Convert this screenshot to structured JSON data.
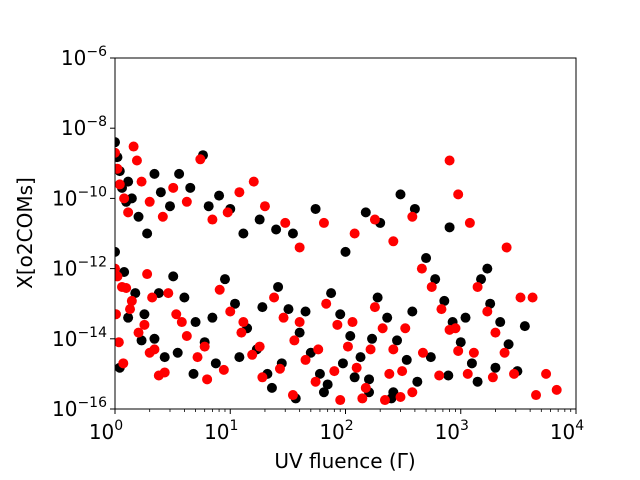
{
  "chart_data": {
    "type": "scatter",
    "title": "",
    "xlabel": "UV fluence (Γ)",
    "ylabel": "X[o2COMs]",
    "xscale": "log",
    "yscale": "log",
    "xlim": [
      1,
      10000
    ],
    "ylim": [
      1e-16,
      1e-06
    ],
    "x_ticks": [
      {
        "value": 1,
        "base": "10",
        "exp": "0"
      },
      {
        "value": 10,
        "base": "10",
        "exp": "1"
      },
      {
        "value": 100,
        "base": "10",
        "exp": "2"
      },
      {
        "value": 1000,
        "base": "10",
        "exp": "3"
      },
      {
        "value": 10000,
        "base": "10",
        "exp": "4"
      }
    ],
    "y_ticks": [
      {
        "value": 1e-16,
        "base": "10",
        "exp": "−16"
      },
      {
        "value": 1e-14,
        "base": "10",
        "exp": "−14"
      },
      {
        "value": 1e-12,
        "base": "10",
        "exp": "−12"
      },
      {
        "value": 1e-10,
        "base": "10",
        "exp": "−10"
      },
      {
        "value": 1e-08,
        "base": "10",
        "exp": "−8"
      },
      {
        "value": 1e-06,
        "base": "10",
        "exp": "−6"
      }
    ],
    "grid": false,
    "legend": "none",
    "series": [
      {
        "color": "#000000",
        "points": [
          [
            1.0,
            4e-09
          ],
          [
            1.05,
            1.5e-09
          ],
          [
            1.1,
            6e-10
          ],
          [
            1.15,
            2e-10
          ],
          [
            1.25,
            8e-11
          ],
          [
            1.3,
            3e-10
          ],
          [
            1.4,
            1e-10
          ],
          [
            1.6,
            3e-11
          ],
          [
            1.9,
            1e-11
          ],
          [
            2.2,
            5e-10
          ],
          [
            2.5,
            1.5e-10
          ],
          [
            3.0,
            6e-11
          ],
          [
            3.6,
            5e-10
          ],
          [
            4.5,
            2e-10
          ],
          [
            5.8,
            1.7e-09
          ],
          [
            6.5,
            6e-11
          ],
          [
            8,
            1.2e-10
          ],
          [
            10,
            5e-11
          ],
          [
            13,
            1e-11
          ],
          [
            18,
            2.5e-11
          ],
          [
            25,
            1.3e-11
          ],
          [
            35,
            1e-11
          ],
          [
            55,
            5e-11
          ],
          [
            100,
            3e-12
          ],
          [
            150,
            4e-11
          ],
          [
            200,
            2e-11
          ],
          [
            300,
            1.3e-10
          ],
          [
            400,
            5e-11
          ],
          [
            800,
            1.5e-11
          ],
          [
            1700,
            1e-12
          ],
          [
            1,
            3e-12
          ],
          [
            1.2,
            8e-13
          ],
          [
            1.5,
            2e-13
          ],
          [
            1.8,
            5e-14
          ],
          [
            2.2,
            1e-14
          ],
          [
            2.7,
            3e-15
          ],
          [
            3.2,
            6e-13
          ],
          [
            4,
            1.5e-13
          ],
          [
            5,
            3e-14
          ],
          [
            6,
            8e-15
          ],
          [
            7.5,
            2e-15
          ],
          [
            9,
            5e-13
          ],
          [
            11,
            1e-13
          ],
          [
            14,
            2e-14
          ],
          [
            17,
            5e-15
          ],
          [
            21,
            1e-15
          ],
          [
            26,
            3e-13
          ],
          [
            32,
            7e-14
          ],
          [
            40,
            1.5e-14
          ],
          [
            50,
            4e-15
          ],
          [
            60,
            1e-15
          ],
          [
            75,
            2e-13
          ],
          [
            90,
            5e-14
          ],
          [
            110,
            1.2e-14
          ],
          [
            135,
            3e-15
          ],
          [
            160,
            7e-16
          ],
          [
            190,
            1.5e-13
          ],
          [
            230,
            4e-14
          ],
          [
            280,
            9e-15
          ],
          [
            340,
            2.5e-15
          ],
          [
            420,
            6e-16
          ],
          [
            500,
            2e-12
          ],
          [
            600,
            5e-13
          ],
          [
            720,
            1.2e-13
          ],
          [
            850,
            3e-14
          ],
          [
            1000,
            8e-15
          ],
          [
            1250,
            2e-15
          ],
          [
            1500,
            5e-13
          ],
          [
            1800,
            1e-13
          ],
          [
            2200,
            3e-14
          ],
          [
            2600,
            7e-15
          ],
          [
            3100,
            1.2e-15
          ],
          [
            3600,
            2.3e-14
          ],
          [
            1.1,
            1.5e-15
          ],
          [
            1.3,
            4e-14
          ],
          [
            1.7,
            9e-15
          ],
          [
            2.4,
            2e-13
          ],
          [
            3.5,
            4e-15
          ],
          [
            4.8,
            1e-15
          ],
          [
            7,
            4e-14
          ],
          [
            12,
            3e-15
          ],
          [
            19,
            8e-14
          ],
          [
            28,
            2e-15
          ],
          [
            45,
            6e-14
          ],
          [
            70,
            5e-16
          ],
          [
            95,
            2e-15
          ],
          [
            120,
            8e-16
          ],
          [
            170,
            1e-14
          ],
          [
            260,
            3e-16
          ],
          [
            380,
            6e-14
          ],
          [
            550,
            3e-15
          ],
          [
            780,
            9e-16
          ],
          [
            1100,
            4e-14
          ],
          [
            1400,
            6e-16
          ],
          [
            2000,
            1.5e-15
          ],
          [
            160,
            3e-16
          ],
          [
            250,
            2e-16
          ],
          [
            23,
            4e-16
          ],
          [
            37,
            2e-16
          ],
          [
            65,
            3e-16
          ]
        ]
      },
      {
        "color": "#ff0000",
        "points": [
          [
            1.0,
            2e-09
          ],
          [
            1.05,
            7e-10
          ],
          [
            1.1,
            2.5e-10
          ],
          [
            1.2,
            1e-10
          ],
          [
            1.3,
            4e-11
          ],
          [
            1.45,
            3e-09
          ],
          [
            1.55,
            1.2e-09
          ],
          [
            1.7,
            3e-10
          ],
          [
            2.0,
            8e-11
          ],
          [
            2.6,
            3e-11
          ],
          [
            3.2,
            2e-10
          ],
          [
            4.2,
            8e-11
          ],
          [
            5.5,
            1.3e-09
          ],
          [
            7,
            2.5e-11
          ],
          [
            9.5,
            4e-11
          ],
          [
            12,
            1.5e-10
          ],
          [
            16,
            3e-10
          ],
          [
            20,
            6e-11
          ],
          [
            30,
            2e-11
          ],
          [
            40,
            4e-12
          ],
          [
            65,
            2e-11
          ],
          [
            120,
            1e-11
          ],
          [
            180,
            2.5e-11
          ],
          [
            260,
            6e-12
          ],
          [
            380,
            3e-11
          ],
          [
            800,
            1.2e-09
          ],
          [
            950,
            1.3e-10
          ],
          [
            1200,
            2e-11
          ],
          [
            2500,
            4e-12
          ],
          [
            4200,
            1.5e-13
          ],
          [
            1,
            1e-12
          ],
          [
            1.15,
            3e-13
          ],
          [
            1.35,
            7e-14
          ],
          [
            1.6,
            1.5e-14
          ],
          [
            2,
            4e-15
          ],
          [
            2.4,
            9e-16
          ],
          [
            2.9,
            2e-13
          ],
          [
            3.4,
            5e-14
          ],
          [
            4.2,
            1.2e-14
          ],
          [
            5.2,
            3e-15
          ],
          [
            6.3,
            7e-16
          ],
          [
            8.1,
            2.5e-13
          ],
          [
            10,
            6e-14
          ],
          [
            12.5,
            1.5e-14
          ],
          [
            15.5,
            3.5e-15
          ],
          [
            19,
            8e-16
          ],
          [
            24,
            1.5e-13
          ],
          [
            29,
            4e-14
          ],
          [
            36,
            9e-15
          ],
          [
            45,
            2.5e-15
          ],
          [
            55,
            6e-16
          ],
          [
            68,
            1e-13
          ],
          [
            85,
            2.5e-14
          ],
          [
            105,
            6e-15
          ],
          [
            125,
            1.5e-15
          ],
          [
            150,
            4e-16
          ],
          [
            180,
            8e-14
          ],
          [
            210,
            2e-14
          ],
          [
            260,
            5e-15
          ],
          [
            310,
            1.2e-15
          ],
          [
            380,
            3e-16
          ],
          [
            460,
            1e-12
          ],
          [
            560,
            3e-13
          ],
          [
            680,
            7e-14
          ],
          [
            800,
            1.8e-14
          ],
          [
            950,
            4.5e-15
          ],
          [
            1150,
            1e-15
          ],
          [
            1400,
            3e-13
          ],
          [
            1700,
            6e-14
          ],
          [
            2000,
            1.5e-14
          ],
          [
            2400,
            4e-15
          ],
          [
            2900,
            1e-15
          ],
          [
            3300,
            1.5e-13
          ],
          [
            4500,
            2.5e-16
          ],
          [
            5500,
            1e-15
          ],
          [
            1.02,
            5e-14
          ],
          [
            1.08,
            8e-15
          ],
          [
            1.18,
            2e-15
          ],
          [
            1.4,
            1.2e-13
          ],
          [
            1.8,
            2.5e-14
          ],
          [
            2.2,
            5e-15
          ],
          [
            2.7,
            1.1e-15
          ],
          [
            3.8,
            3e-14
          ],
          [
            6,
            6e-15
          ],
          [
            8.8,
            1.3e-15
          ],
          [
            13,
            3e-14
          ],
          [
            18,
            6e-15
          ],
          [
            27,
            1.4e-15
          ],
          [
            40,
            3e-14
          ],
          [
            58,
            5e-15
          ],
          [
            80,
            1.2e-15
          ],
          [
            115,
            3e-14
          ],
          [
            165,
            5e-15
          ],
          [
            240,
            1e-15
          ],
          [
            330,
            2e-14
          ],
          [
            470,
            4e-15
          ],
          [
            650,
            9e-16
          ],
          [
            900,
            2e-14
          ],
          [
            1300,
            4e-15
          ],
          [
            1900,
            8e-16
          ],
          [
            6800,
            3.5e-16
          ],
          [
            140,
            2e-16
          ],
          [
            220,
            1.8e-16
          ],
          [
            300,
            2.2e-16
          ],
          [
            35,
            2.5e-16
          ],
          [
            90,
            1.8e-16
          ],
          [
            2.1,
            1.5e-13
          ],
          [
            1.25,
            2.8e-13
          ],
          [
            1.9,
            7e-13
          ],
          [
            1.05,
            6e-13
          ]
        ]
      }
    ]
  }
}
